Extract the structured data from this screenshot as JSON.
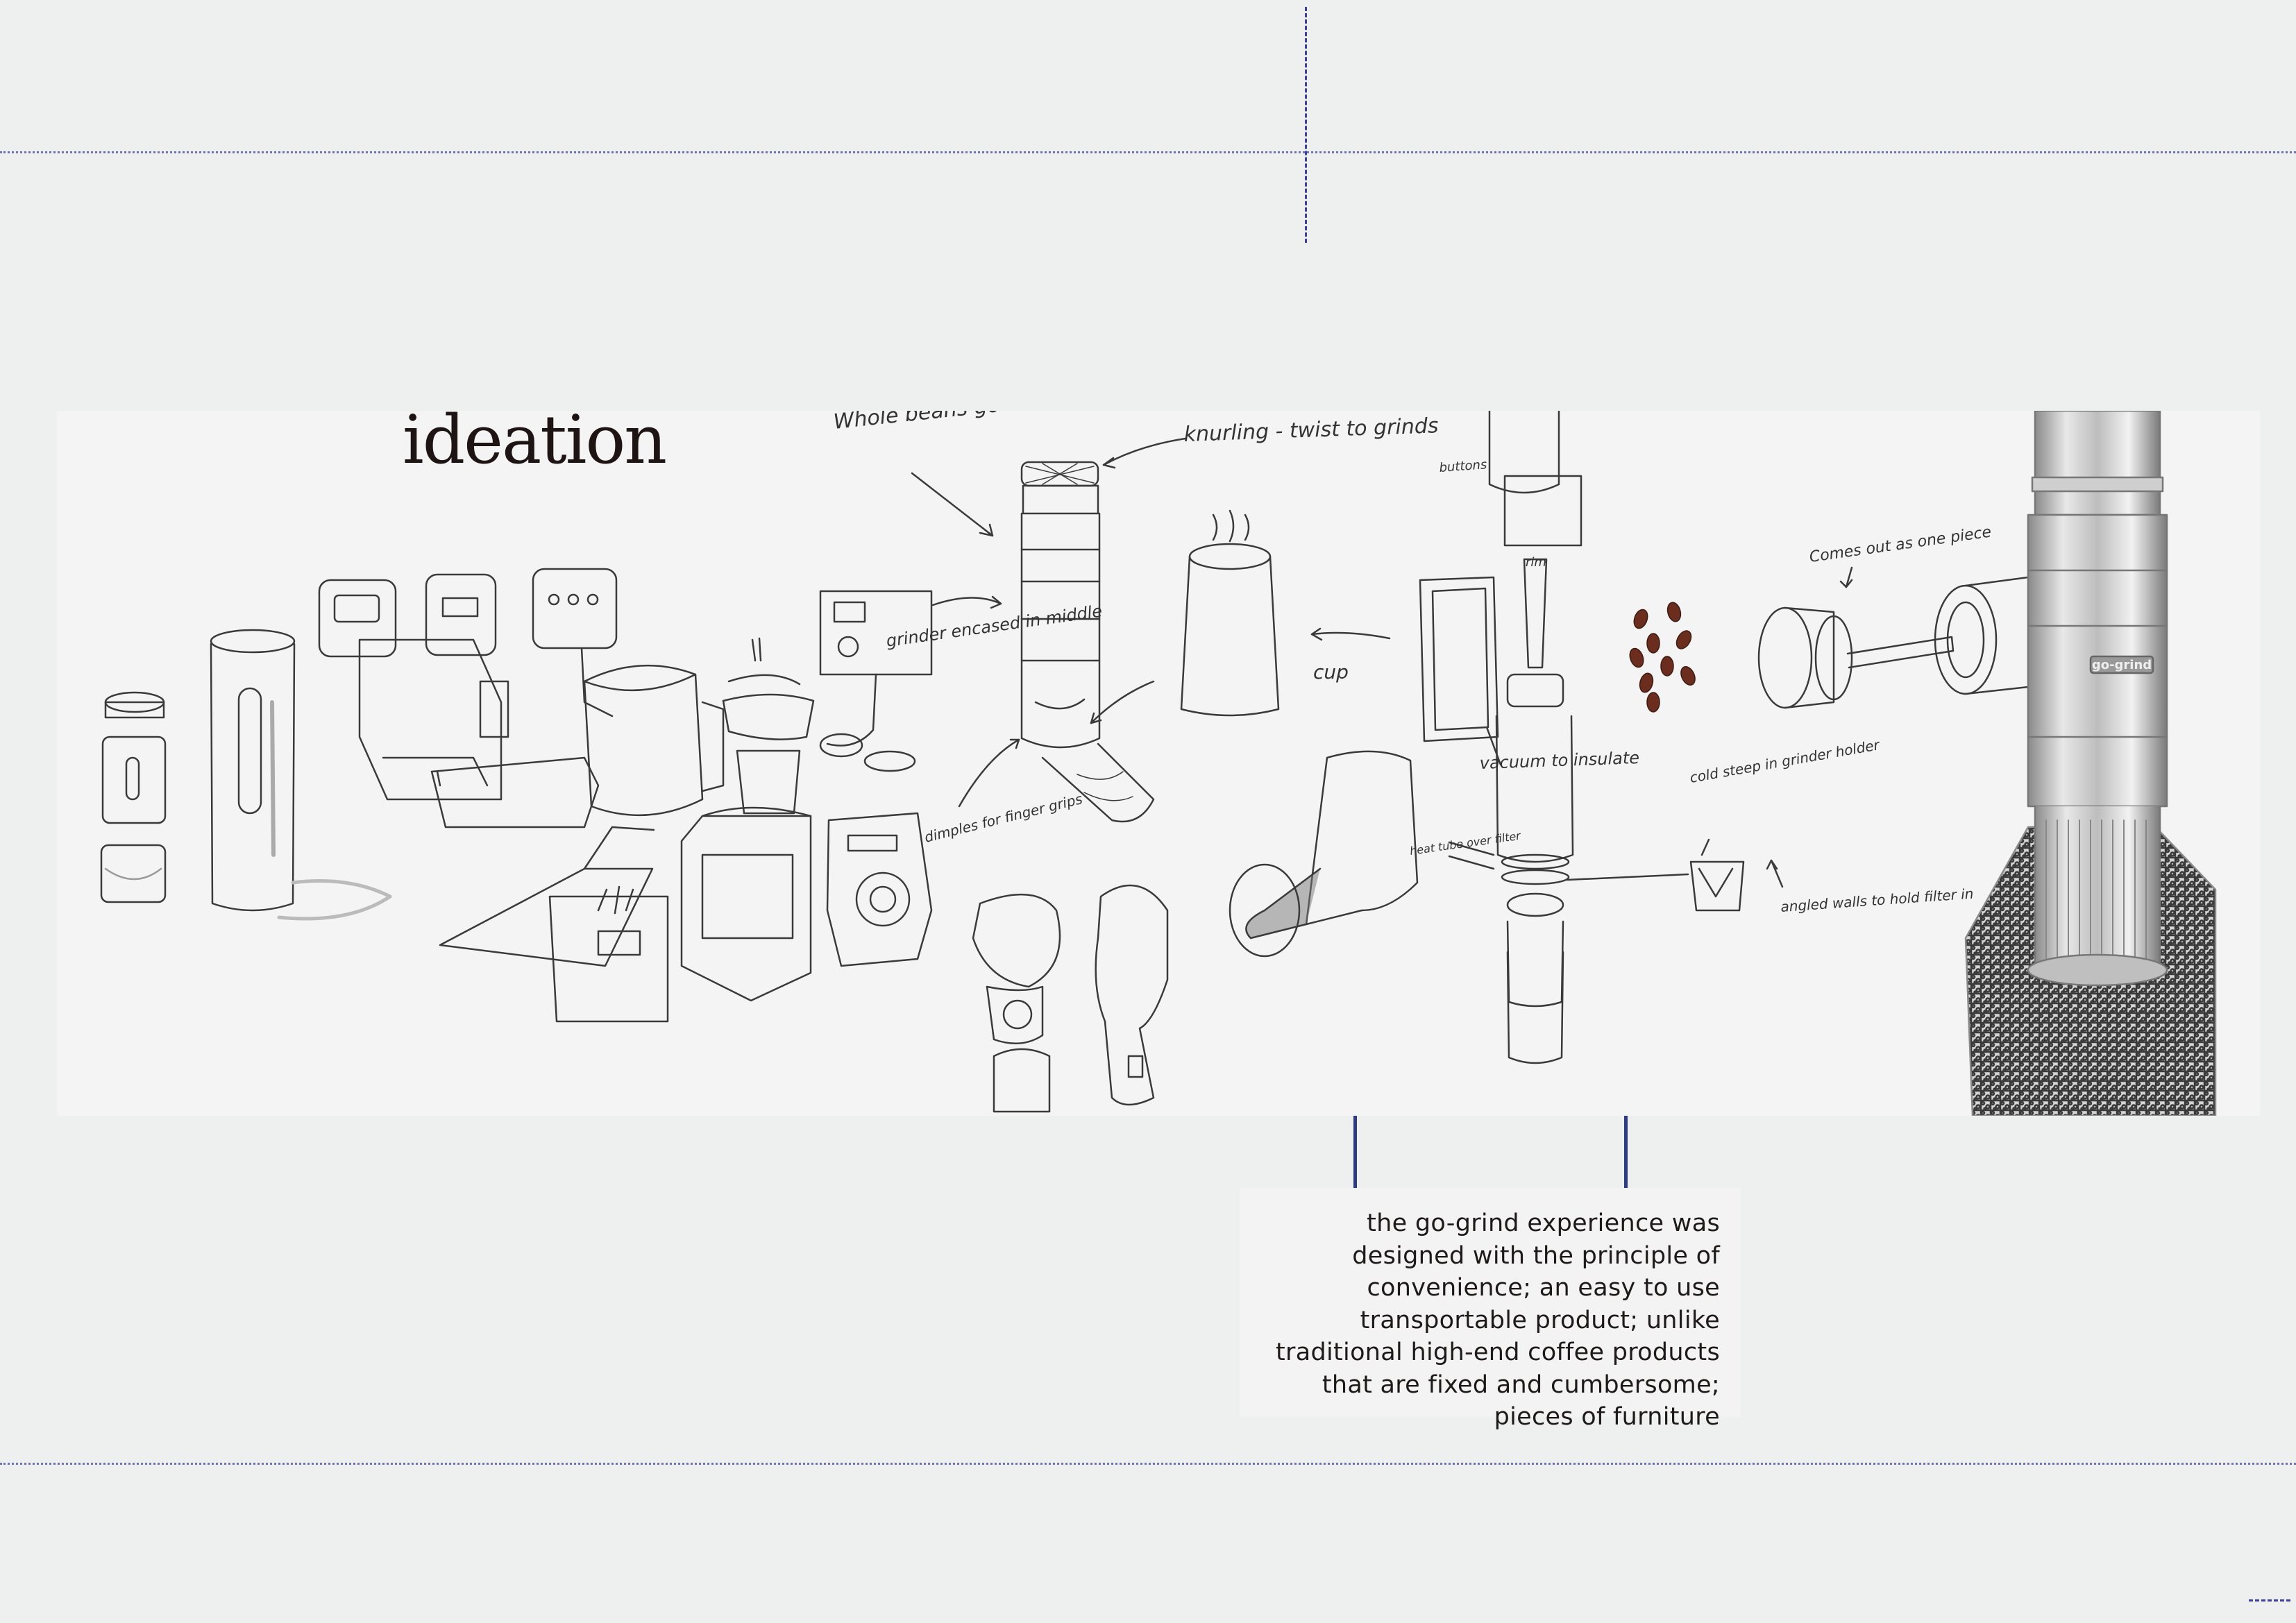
{
  "title": "ideation",
  "description": "the go-grind experience was designed with the principle of convenience; an easy to use transportable product; unlike traditional high-end coffee products that are fixed and cumbersome; pieces of furniture",
  "sketch_annotations": {
    "whole_beans": "Whole beans go in",
    "knurling": "knurling - twist to grinds",
    "buttons": "buttons",
    "rim": "rim",
    "comes_out": "Comes out as one piece",
    "grinder": "grinder encased in middle",
    "cup": "cup",
    "vacuum": "vacuum to insulate",
    "cold_steep": "cold steep in grinder holder",
    "dimples": "dimples for finger grips",
    "heat_tube": "heat tube over filter",
    "angled_walls": "angled walls to hold filter in",
    "brand": "go-grind"
  },
  "colors": {
    "page": "#eeefef",
    "panel": "#f4f4f4",
    "guide": "#3b3fa0",
    "connector": "#2d3a86",
    "ink": "#3a3a3a",
    "beans": "#6b2e1e"
  }
}
